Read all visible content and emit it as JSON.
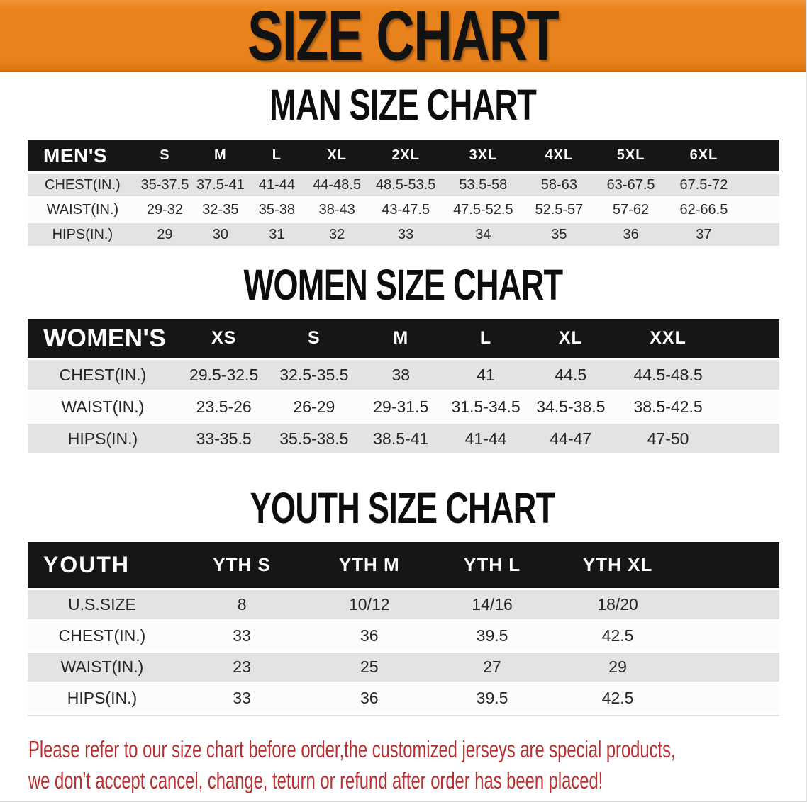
{
  "colors": {
    "banner_bg": "#e8821d",
    "header_bg": "#161616",
    "row_gray": "#e3e3e3",
    "row_white": "#fcfcfc",
    "footnote": "#b93031",
    "title": "#121212"
  },
  "banner": {
    "title": "SIZE CHART"
  },
  "man_section": {
    "heading": "MAN SIZE CHART",
    "table": {
      "label": "MEN'S",
      "sizes": [
        "S",
        "M",
        "L",
        "XL",
        "2XL",
        "3XL",
        "4XL",
        "5XL",
        "6XL"
      ],
      "rows": [
        {
          "label": "CHEST(IN.)",
          "values": [
            "35-37.5",
            "37.5-41",
            "41-44",
            "44-48.5",
            "48.5-53.5",
            "53.5-58",
            "58-63",
            "63-67.5",
            "67.5-72"
          ]
        },
        {
          "label": "WAIST(IN.)",
          "values": [
            "29-32",
            "32-35",
            "35-38",
            "38-43",
            "43-47.5",
            "47.5-52.5",
            "52.5-57",
            "57-62",
            "62-66.5"
          ]
        },
        {
          "label": "HIPS(IN.)",
          "values": [
            "29",
            "30",
            "31",
            "32",
            "33",
            "34",
            "35",
            "36",
            "37"
          ]
        }
      ]
    }
  },
  "women_section": {
    "heading": "WOMEN SIZE CHART",
    "table": {
      "label": "WOMEN'S",
      "sizes": [
        "XS",
        "S",
        "M",
        "L",
        "XL",
        "XXL"
      ],
      "rows": [
        {
          "label": "CHEST(IN.)",
          "values": [
            "29.5-32.5",
            "32.5-35.5",
            "38",
            "41",
            "44.5",
            "44.5-48.5"
          ]
        },
        {
          "label": "WAIST(IN.)",
          "values": [
            "23.5-26",
            "26-29",
            "29-31.5",
            "31.5-34.5",
            "34.5-38.5",
            "38.5-42.5"
          ]
        },
        {
          "label": "HIPS(IN.)",
          "values": [
            "33-35.5",
            "35.5-38.5",
            "38.5-41",
            "41-44",
            "44-47",
            "47-50"
          ]
        }
      ]
    }
  },
  "youth_section": {
    "heading": "YOUTH SIZE CHART",
    "table": {
      "label": "YOUTH",
      "sizes": [
        "YTH S",
        "YTH M",
        "YTH L",
        "YTH XL"
      ],
      "rows": [
        {
          "label": "U.S.SIZE",
          "values": [
            "8",
            "10/12",
            "14/16",
            "18/20"
          ]
        },
        {
          "label": "CHEST(IN.)",
          "values": [
            "33",
            "36",
            "39.5",
            "42.5"
          ]
        },
        {
          "label": "WAIST(IN.)",
          "values": [
            "23",
            "25",
            "27",
            "29"
          ]
        },
        {
          "label": "HIPS(IN.)",
          "values": [
            "33",
            "36",
            "39.5",
            "42.5"
          ]
        }
      ]
    }
  },
  "footnote": {
    "line1": "Please refer to our size chart before order,the customized jerseys are special products,",
    "line2": "we don't accept cancel, change, teturn or refund after order has been placed!"
  }
}
